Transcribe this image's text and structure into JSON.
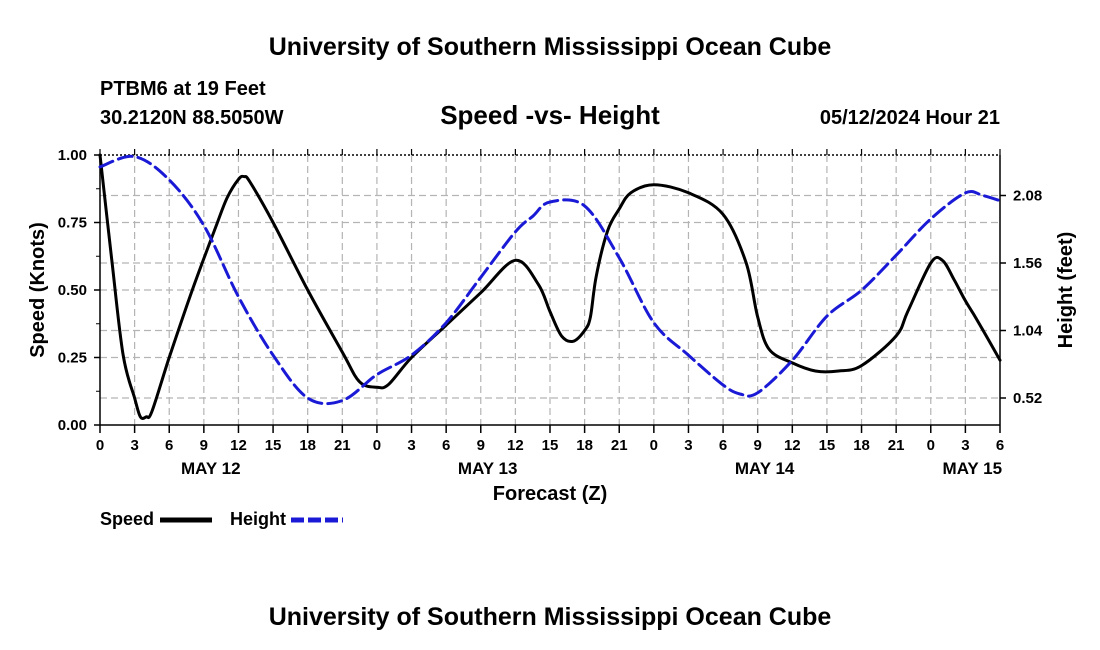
{
  "header": {
    "title": "University of Southern Mississippi Ocean Cube",
    "station": "PTBM6 at 19 Feet",
    "coords": "30.2120N  88.5050W",
    "subtitle": "Speed -vs- Height",
    "datetime": "05/12/2024 Hour 21"
  },
  "footer": {
    "title": "University of Southern Mississippi Ocean Cube"
  },
  "chart_data": {
    "type": "line",
    "title": "Speed -vs- Height",
    "xlabel": "Forecast (Z)",
    "ylabel": "Speed (Knots)",
    "y2label": "Height (feet)",
    "xlim": [
      0,
      78
    ],
    "ylim": [
      0,
      1.0
    ],
    "y2lim": [
      0.312,
      2.392
    ],
    "grid": true,
    "x_ticks": [
      0,
      3,
      6,
      9,
      12,
      15,
      18,
      21,
      24,
      27,
      30,
      33,
      36,
      39,
      42,
      45,
      48,
      51,
      54,
      57,
      60,
      63,
      66,
      69,
      72,
      75,
      78
    ],
    "x_tick_labels": [
      "0",
      "3",
      "6",
      "9",
      "12",
      "15",
      "18",
      "21",
      "0",
      "3",
      "6",
      "9",
      "12",
      "15",
      "18",
      "21",
      "0",
      "3",
      "6",
      "9",
      "12",
      "15",
      "18",
      "21",
      "0",
      "3",
      "6"
    ],
    "date_labels": [
      {
        "label": "MAY 12",
        "hour": 9.6
      },
      {
        "label": "MAY 13",
        "hour": 33.6
      },
      {
        "label": "MAY 14",
        "hour": 57.6
      },
      {
        "label": "MAY 15",
        "hour": 75.6
      }
    ],
    "y_ticks": [
      0,
      0.25,
      0.5,
      0.75,
      1.0
    ],
    "y_tick_labels": [
      "0.00",
      "0.25",
      "0.50",
      "0.75",
      "1.00"
    ],
    "y2_ticks": [
      0.52,
      1.04,
      1.56,
      2.08
    ],
    "y2_tick_labels": [
      "0.52",
      "1.04",
      "1.56",
      "2.08"
    ],
    "legend": [
      {
        "name": "Speed",
        "color": "#000000",
        "dash": "solid"
      },
      {
        "name": "Height",
        "color": "#1a1ad6",
        "dash": "dashed"
      }
    ],
    "series": [
      {
        "name": "Speed",
        "axis": "left",
        "color": "#000000",
        "x": [
          0,
          1,
          2,
          3,
          3.5,
          4,
          4.5,
          6,
          8,
          10,
          11,
          12,
          12.5,
          13,
          15,
          18,
          21,
          22.5,
          24,
          25,
          27,
          30,
          33,
          36,
          38,
          39,
          40,
          41,
          42,
          42.5,
          43,
          44,
          45,
          46,
          48,
          51,
          54,
          56,
          57,
          58,
          60,
          62,
          64,
          66,
          69,
          70,
          72,
          73,
          74,
          75,
          76,
          78
        ],
        "y": [
          1.0,
          0.62,
          0.26,
          0.1,
          0.03,
          0.03,
          0.05,
          0.25,
          0.5,
          0.73,
          0.84,
          0.91,
          0.92,
          0.9,
          0.75,
          0.5,
          0.27,
          0.16,
          0.14,
          0.15,
          0.25,
          0.37,
          0.49,
          0.61,
          0.52,
          0.42,
          0.33,
          0.31,
          0.35,
          0.4,
          0.55,
          0.72,
          0.8,
          0.86,
          0.89,
          0.86,
          0.78,
          0.6,
          0.4,
          0.28,
          0.23,
          0.2,
          0.2,
          0.22,
          0.33,
          0.42,
          0.6,
          0.61,
          0.54,
          0.46,
          0.39,
          0.24
        ]
      },
      {
        "name": "Height",
        "axis": "right",
        "color": "#1a1ad6",
        "x": [
          0,
          3,
          6,
          9,
          12,
          15,
          18,
          21,
          24,
          27,
          30,
          33,
          36,
          37.5,
          39,
          42,
          45,
          48,
          51,
          54,
          55.5,
          57,
          60,
          63,
          66,
          69,
          72,
          75,
          76.5,
          78
        ],
        "y": [
          2.3,
          2.38,
          2.2,
          1.85,
          1.3,
          0.85,
          0.52,
          0.5,
          0.7,
          0.85,
          1.1,
          1.45,
          1.8,
          1.92,
          2.03,
          2.0,
          1.6,
          1.1,
          0.85,
          0.62,
          0.55,
          0.56,
          0.81,
          1.15,
          1.35,
          1.62,
          1.9,
          2.1,
          2.08,
          2.04
        ]
      }
    ]
  }
}
